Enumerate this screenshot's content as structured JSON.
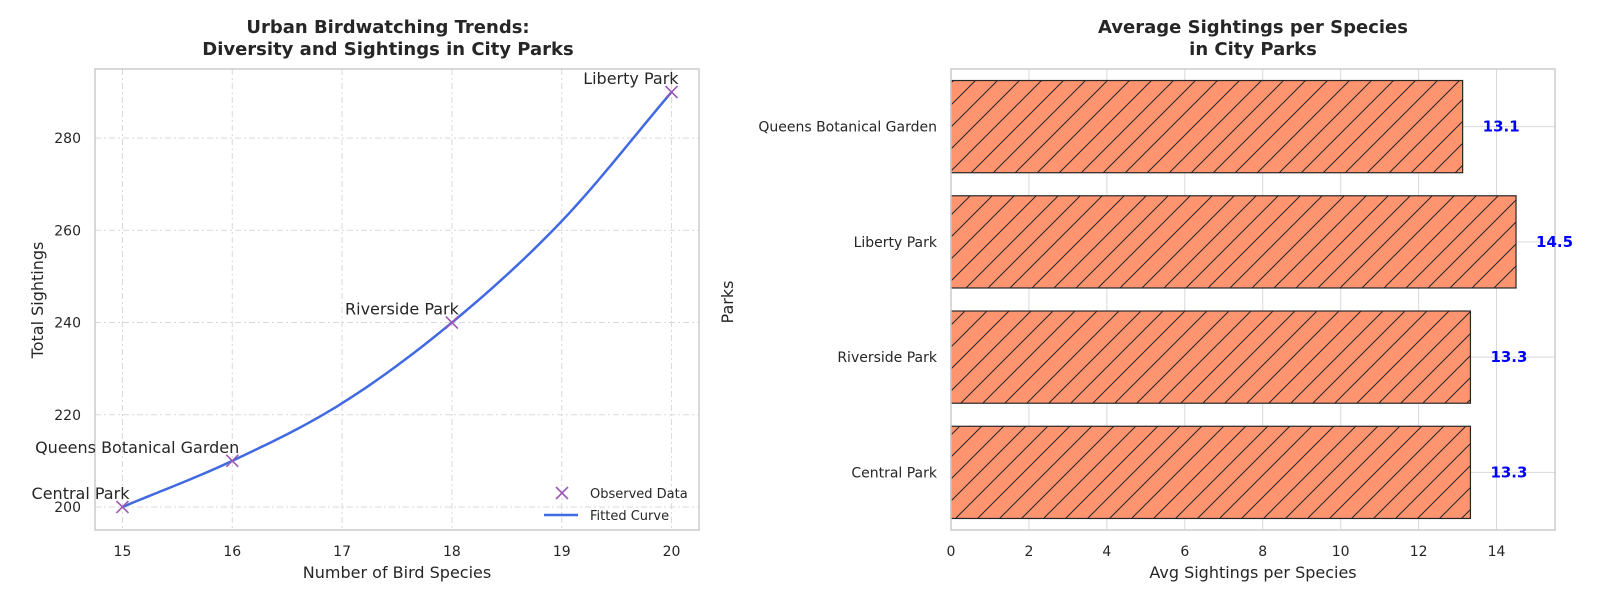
{
  "chart_data": [
    {
      "type": "scatter",
      "title": "Urban Birdwatching Trends:\nDiversity and Sightings in City Parks",
      "xlabel": "Number of Bird Species",
      "ylabel": "Total Sightings",
      "xlim": [
        14.75,
        20.25
      ],
      "ylim": [
        195,
        295
      ],
      "xticks": [
        15,
        16,
        17,
        18,
        19,
        20
      ],
      "yticks": [
        200,
        220,
        240,
        260,
        280
      ],
      "grid": true,
      "legend_position": "bottom-right",
      "series": [
        {
          "name": "Observed Data",
          "kind": "scatter",
          "marker": "x",
          "color": "#9b59b6",
          "points": [
            {
              "label": "Central Park",
              "x": 15,
              "y": 200
            },
            {
              "label": "Queens Botanical Garden",
              "x": 16,
              "y": 210
            },
            {
              "label": "Riverside Park",
              "x": 18,
              "y": 240
            },
            {
              "label": "Liberty Park",
              "x": 20,
              "y": 290
            }
          ]
        },
        {
          "name": "Fitted Curve",
          "kind": "line",
          "color": "#4169e1",
          "x_range": [
            15,
            20
          ],
          "y_at_x": [
            [
              15,
              200
            ],
            [
              16,
              210
            ],
            [
              17,
              222.5
            ],
            [
              18,
              240
            ],
            [
              19,
              262
            ],
            [
              20,
              290
            ]
          ]
        }
      ]
    },
    {
      "type": "bar",
      "orientation": "horizontal",
      "title": "Average Sightings per Species\nin City Parks",
      "xlabel": "Avg Sightings per Species",
      "ylabel": "Parks",
      "xlim": [
        0,
        15.5
      ],
      "xticks": [
        0,
        2,
        4,
        6,
        8,
        10,
        12,
        14
      ],
      "grid": true,
      "color": "#ff9470",
      "edgecolor": "#262626",
      "hatch": "/",
      "label_color": "#0000ff",
      "categories": [
        "Central Park",
        "Riverside Park",
        "Liberty Park",
        "Queens Botanical Garden"
      ],
      "values": [
        13.33,
        13.33,
        14.5,
        13.13
      ],
      "value_labels": [
        "13.3",
        "13.3",
        "14.5",
        "13.1"
      ]
    }
  ]
}
